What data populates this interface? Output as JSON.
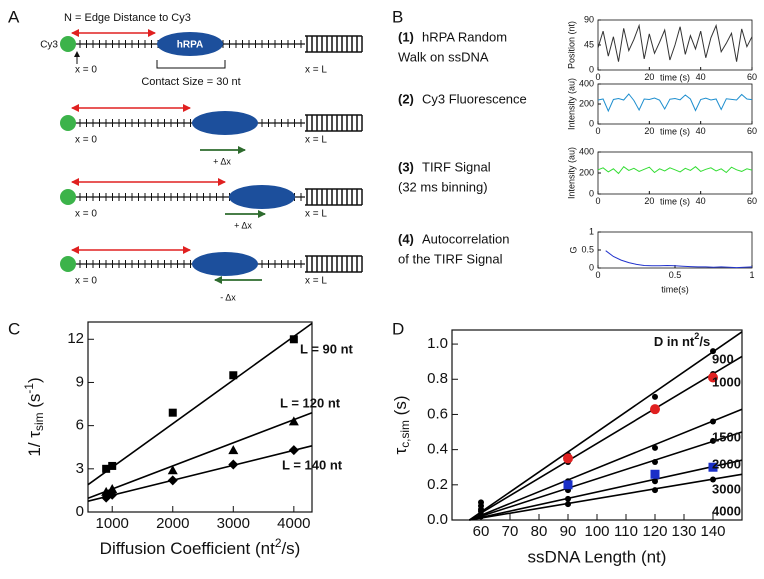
{
  "panel_labels": [
    "A",
    "B",
    "C",
    "D"
  ],
  "diagram": {
    "caption": "N = Edge Distance to Cy3",
    "dye": "Cy3",
    "protein": "hRPA",
    "contact_size": "Contact Size = 30 nt",
    "rows": [
      {
        "x0": "x = 0",
        "xL": "x = L"
      },
      {
        "x0": "x = 0",
        "xL": "x = L",
        "step": "+ Δx"
      },
      {
        "x0": "x = 0",
        "xL": "x = L",
        "step": "+ Δx"
      },
      {
        "x0": "x = 0",
        "xL": "x = L",
        "step": "- Δx"
      }
    ]
  },
  "panel_b": {
    "items": [
      {
        "number": "(1)",
        "lines": [
          "hRPA Random",
          "Walk on ssDNA"
        ]
      },
      {
        "number": "(2)",
        "lines": [
          "Cy3 Fluorescence"
        ]
      },
      {
        "number": "(3)",
        "lines": [
          "TIRF Signal",
          "(32 ms binning)"
        ]
      },
      {
        "number": "(4)",
        "lines": [
          "Autocorrelation",
          "of the TIRF Signal"
        ]
      }
    ]
  },
  "chart_data": [
    {
      "type": "line",
      "y_label": "Position (nt)",
      "x_label": "time (s)",
      "xlim": [
        0,
        60
      ],
      "xticks": [
        0,
        20,
        40,
        60
      ],
      "ylim": [
        0,
        90
      ],
      "yticks": [
        0,
        45,
        90
      ],
      "series": [
        {
          "color": "#333333",
          "x": [
            0,
            2,
            4,
            6,
            8,
            10,
            12,
            14,
            16,
            18,
            20,
            22,
            24,
            26,
            28,
            30,
            32,
            34,
            36,
            38,
            40,
            42,
            44,
            46,
            48,
            50,
            52,
            54,
            56,
            58,
            60
          ],
          "values": [
            40,
            70,
            25,
            60,
            15,
            75,
            35,
            55,
            80,
            20,
            65,
            30,
            50,
            72,
            18,
            45,
            78,
            28,
            62,
            38,
            70,
            22,
            58,
            80,
            33,
            48,
            66,
            15,
            74,
            42,
            60
          ]
        }
      ]
    },
    {
      "type": "line",
      "y_label": "Intensity (au)",
      "x_label": "time (s)",
      "xlim": [
        0,
        60
      ],
      "xticks": [
        0,
        20,
        40,
        60
      ],
      "ylim": [
        0,
        400
      ],
      "yticks": [
        0,
        200,
        400
      ],
      "series": [
        {
          "color": "#1f8fcf",
          "x": [
            0,
            2,
            4,
            6,
            8,
            10,
            12,
            14,
            16,
            18,
            20,
            22,
            24,
            26,
            28,
            30,
            32,
            34,
            36,
            38,
            40,
            42,
            44,
            46,
            48,
            50,
            52,
            54,
            56,
            58,
            60
          ],
          "values": [
            240,
            250,
            130,
            245,
            255,
            240,
            300,
            235,
            140,
            250,
            245,
            260,
            238,
            150,
            248,
            255,
            242,
            290,
            250,
            135,
            245,
            258,
            240,
            250,
            145,
            252,
            246,
            240,
            295,
            250,
            244
          ]
        }
      ]
    },
    {
      "type": "line",
      "y_label": "Intensity (au)",
      "x_label": "time (s)",
      "xlim": [
        0,
        60
      ],
      "xticks": [
        0,
        20,
        40,
        60
      ],
      "ylim": [
        0,
        400
      ],
      "yticks": [
        0,
        200,
        400
      ],
      "series": [
        {
          "color": "#33dd33",
          "x": [
            0,
            2,
            4,
            6,
            8,
            10,
            12,
            14,
            16,
            18,
            20,
            22,
            24,
            26,
            28,
            30,
            32,
            34,
            36,
            38,
            40,
            42,
            44,
            46,
            48,
            50,
            52,
            54,
            56,
            58,
            60
          ],
          "values": [
            230,
            250,
            210,
            240,
            195,
            260,
            225,
            245,
            215,
            235,
            255,
            205,
            240,
            220,
            250,
            230,
            210,
            245,
            225,
            260,
            215,
            235,
            250,
            220,
            240,
            205,
            255,
            230,
            215,
            240,
            228
          ]
        }
      ]
    },
    {
      "type": "line",
      "y_label": "G",
      "x_label": "time(s)",
      "xlim": [
        0,
        1
      ],
      "xticks": [
        0,
        0.5,
        1
      ],
      "ylim": [
        0,
        1
      ],
      "yticks": [
        0,
        0.5,
        1
      ],
      "series": [
        {
          "color": "#2233cc",
          "x": [
            0.05,
            0.1,
            0.15,
            0.2,
            0.25,
            0.3,
            0.35,
            0.4,
            0.45,
            0.5,
            0.55,
            0.6,
            0.65,
            0.7,
            0.75,
            0.8,
            0.85,
            0.9,
            0.95,
            1.0
          ],
          "values": [
            0.48,
            0.32,
            0.22,
            0.15,
            0.1,
            0.07,
            0.06,
            0.06,
            0.07,
            0.06,
            0.05,
            0.04,
            0.03,
            0.03,
            0.02,
            0.03,
            0.02,
            0.01,
            0.02,
            0.03
          ]
        }
      ]
    },
    {
      "type": "scatter",
      "y_label": [
        "1/ τ",
        "sim",
        " (s",
        "-1",
        ")"
      ],
      "x_label": [
        "Diffusion Coefficient (nt",
        "2",
        "/s)"
      ],
      "xlim": [
        600,
        4300
      ],
      "xticks": [
        1000,
        2000,
        3000,
        4000
      ],
      "ylim": [
        0,
        13.2
      ],
      "yticks": [
        0,
        3,
        6,
        9,
        12
      ],
      "series": [
        {
          "name": "L = 90 nt",
          "marker": "square",
          "color": "#000000",
          "x": [
            900,
            1000,
            2000,
            3000,
            4000
          ],
          "values": [
            3.0,
            3.2,
            6.9,
            9.5,
            12.0
          ]
        },
        {
          "name": "L = 120 nt",
          "marker": "triangle",
          "color": "#000000",
          "x": [
            900,
            1000,
            2000,
            3000,
            4000
          ],
          "values": [
            1.4,
            1.6,
            2.9,
            4.3,
            6.3
          ]
        },
        {
          "name": "L = 140 nt",
          "marker": "diamond",
          "color": "#000000",
          "x": [
            900,
            1000,
            2000,
            3000,
            4000
          ],
          "values": [
            1.0,
            1.2,
            2.2,
            3.3,
            4.3
          ]
        },
        {
          "style": "line",
          "color": "#000000",
          "x": [
            600,
            4300
          ],
          "values": [
            1.9,
            13.1
          ]
        },
        {
          "style": "line",
          "color": "#000000",
          "x": [
            600,
            4300
          ],
          "values": [
            0.95,
            6.9
          ]
        },
        {
          "style": "line",
          "color": "#000000",
          "x": [
            600,
            4300
          ],
          "values": [
            0.75,
            4.6
          ]
        }
      ]
    },
    {
      "type": "scatter",
      "y_label": [
        "τ",
        "c,sim",
        " (s)"
      ],
      "x_label": "ssDNA Length (nt)",
      "legend_title": [
        "D in nt",
        "2",
        "/s"
      ],
      "xlim": [
        50,
        150
      ],
      "xticks": [
        60,
        70,
        80,
        90,
        100,
        110,
        120,
        130,
        140
      ],
      "ylim": [
        0,
        1.08
      ],
      "yticks": [
        {
          "value": 0,
          "label": "0.0"
        },
        {
          "value": 0.2,
          "label": "0.2"
        },
        {
          "value": 0.4,
          "label": "0.4"
        },
        {
          "value": 0.6,
          "label": "0.6"
        },
        {
          "value": 0.8,
          "label": "0.8"
        },
        {
          "value": 1,
          "label": "1.0"
        }
      ],
      "series": [
        {
          "name": "900",
          "marker": "circle",
          "color": "#000000",
          "x": [
            60,
            90,
            120,
            140
          ],
          "values": [
            0.1,
            0.37,
            0.7,
            0.96
          ]
        },
        {
          "name": "1000",
          "marker": "circle",
          "color": "#000000",
          "x": [
            60,
            90,
            120,
            140
          ],
          "values": [
            0.08,
            0.33,
            0.63,
            0.83
          ]
        },
        {
          "name": "1500",
          "marker": "circle",
          "color": "#000000",
          "x": [
            60,
            90,
            120,
            140
          ],
          "values": [
            0.06,
            0.22,
            0.41,
            0.56
          ]
        },
        {
          "name": "2000",
          "marker": "circle",
          "color": "#000000",
          "x": [
            60,
            90,
            120,
            140
          ],
          "values": [
            0.05,
            0.17,
            0.33,
            0.45
          ]
        },
        {
          "name": "3000",
          "marker": "circle",
          "color": "#000000",
          "x": [
            60,
            90,
            120,
            140
          ],
          "values": [
            0.03,
            0.12,
            0.22,
            0.3
          ]
        },
        {
          "name": "4000",
          "marker": "circle",
          "color": "#000000",
          "x": [
            60,
            90,
            120,
            140
          ],
          "values": [
            0.02,
            0.09,
            0.17,
            0.23
          ]
        },
        {
          "marker": "circle",
          "color": "#e02020",
          "x": [
            90,
            120,
            140
          ],
          "values": [
            0.35,
            0.63,
            0.81
          ]
        },
        {
          "marker": "square",
          "color": "#1a2fc8",
          "x": [
            90,
            120,
            140
          ],
          "values": [
            0.2,
            0.26,
            0.3
          ]
        },
        {
          "style": "line",
          "color": "#000000",
          "x": [
            56,
            150
          ],
          "values": [
            0,
            1.07
          ]
        },
        {
          "style": "line",
          "color": "#000000",
          "x": [
            56,
            150
          ],
          "values": [
            0,
            0.93
          ]
        },
        {
          "style": "line",
          "color": "#000000",
          "x": [
            56,
            150
          ],
          "values": [
            0,
            0.63
          ]
        },
        {
          "style": "line",
          "color": "#000000",
          "x": [
            56,
            150
          ],
          "values": [
            0,
            0.5
          ]
        },
        {
          "style": "line",
          "color": "#000000",
          "x": [
            56,
            150
          ],
          "values": [
            0,
            0.34
          ]
        },
        {
          "style": "line",
          "color": "#000000",
          "x": [
            56,
            150
          ],
          "values": [
            0,
            0.26
          ]
        }
      ]
    }
  ]
}
